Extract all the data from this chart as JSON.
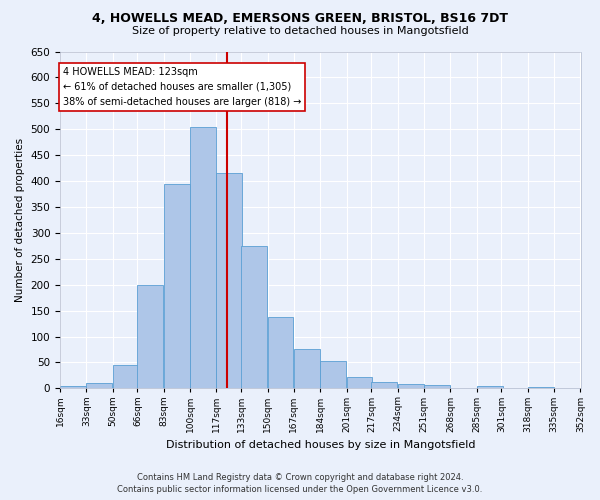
{
  "title_line1": "4, HOWELLS MEAD, EMERSONS GREEN, BRISTOL, BS16 7DT",
  "title_line2": "Size of property relative to detached houses in Mangotsfield",
  "xlabel": "Distribution of detached houses by size in Mangotsfield",
  "ylabel": "Number of detached properties",
  "bin_labels": [
    "16sqm",
    "33sqm",
    "50sqm",
    "66sqm",
    "83sqm",
    "100sqm",
    "117sqm",
    "133sqm",
    "150sqm",
    "167sqm",
    "184sqm",
    "201sqm",
    "217sqm",
    "234sqm",
    "251sqm",
    "268sqm",
    "285sqm",
    "301sqm",
    "318sqm",
    "335sqm",
    "352sqm"
  ],
  "bar_heights": [
    5,
    10,
    45,
    200,
    395,
    505,
    415,
    275,
    138,
    75,
    52,
    22,
    12,
    8,
    7,
    0,
    5,
    0,
    3,
    0
  ],
  "bar_color": "#aec6e8",
  "bar_edge_color": "#5a9fd4",
  "vline_color": "#cc0000",
  "annotation_title": "4 HOWELLS MEAD: 123sqm",
  "annotation_line2": "← 61% of detached houses are smaller (1,305)",
  "annotation_line3": "38% of semi-detached houses are larger (818) →",
  "annotation_box_color": "#ffffff",
  "annotation_box_edge": "#cc0000",
  "ylim": [
    0,
    650
  ],
  "yticks": [
    0,
    50,
    100,
    150,
    200,
    250,
    300,
    350,
    400,
    450,
    500,
    550,
    600,
    650
  ],
  "footer_line1": "Contains HM Land Registry data © Crown copyright and database right 2024.",
  "footer_line2": "Contains public sector information licensed under the Open Government Licence v3.0.",
  "bg_color": "#eaf0fb",
  "grid_color": "#ffffff"
}
